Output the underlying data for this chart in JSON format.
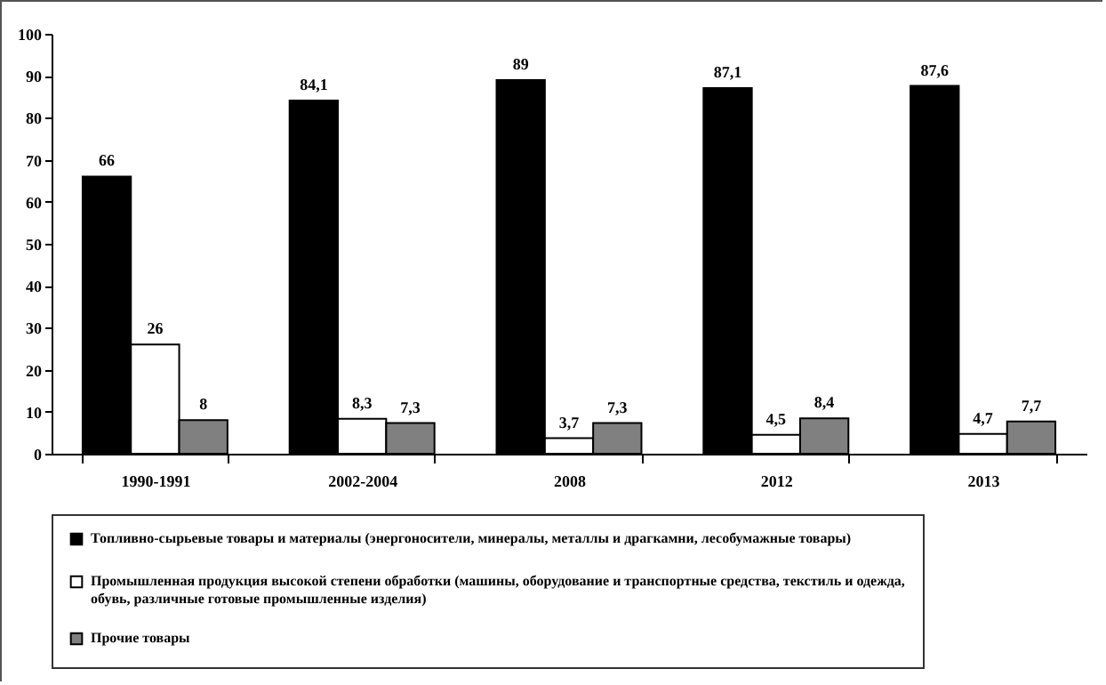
{
  "chart_data": {
    "type": "bar",
    "categories": [
      "1990-1991",
      "2002-2004",
      "2008",
      "2012",
      "2013"
    ],
    "series": [
      {
        "name": "Топливно-сырьевые товары и материалы (энергоносители, минералы, металлы и драгкамни, лесобумажные товары)",
        "color": "#000000",
        "values": [
          66,
          84.1,
          89,
          87.1,
          87.6
        ],
        "value_labels": [
          "66",
          "84,1",
          "89",
          "87,1",
          "87,6"
        ]
      },
      {
        "name": "Промышленная продукция высокой степени обработки (машины, оборудование и транспортные средства, текстиль и одежда, обувь, различные готовые промышленные изделия)",
        "color": "#ffffff",
        "values": [
          26,
          8.3,
          3.7,
          4.5,
          4.7
        ],
        "value_labels": [
          "26",
          "8,3",
          "3,7",
          "4,5",
          "4,7"
        ]
      },
      {
        "name": "Прочие товары",
        "color": "#808080",
        "values": [
          8,
          7.3,
          7.3,
          8.4,
          7.7
        ],
        "value_labels": [
          "8",
          "7,3",
          "7,3",
          "8,4",
          "7,7"
        ]
      }
    ],
    "ylim": [
      0,
      100
    ],
    "yticks": [
      0,
      10,
      20,
      30,
      40,
      50,
      60,
      70,
      80,
      90,
      100
    ],
    "grid": false,
    "legend": "bottom"
  }
}
